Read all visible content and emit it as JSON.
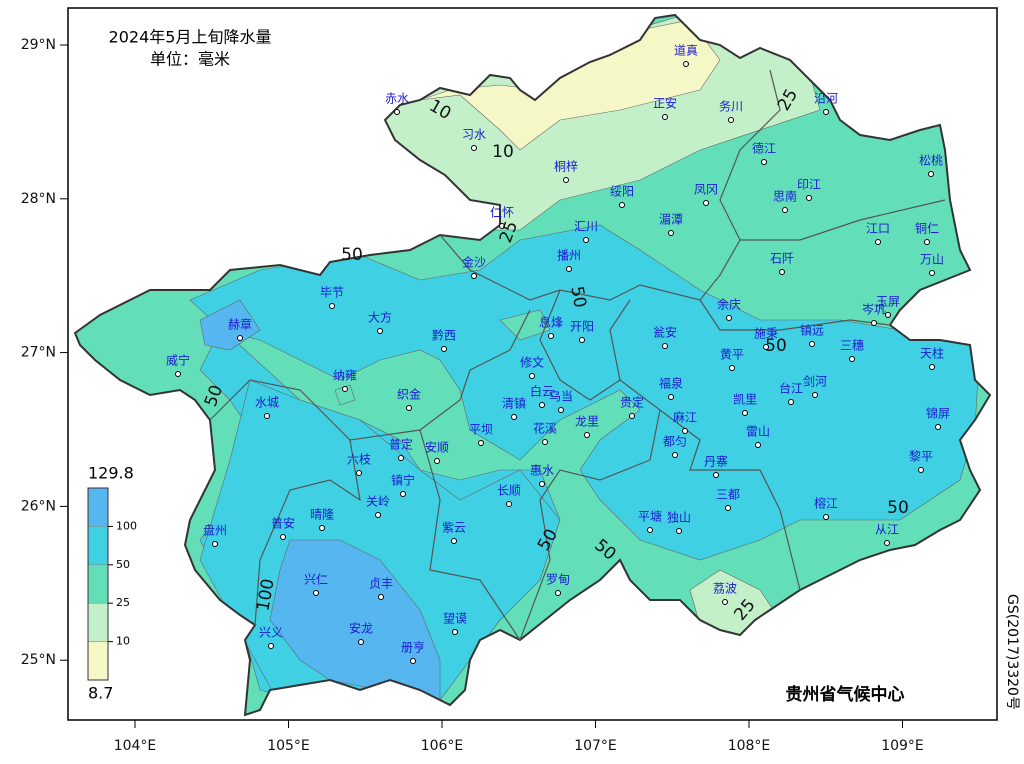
{
  "map": {
    "title": "2024年5月上旬降水量",
    "unit": "单位：毫米",
    "credit": "贵州省气候中心",
    "approval_no": "GS(2017)3320号",
    "lat_ticks": [
      {
        "value": 29,
        "label": "29°N"
      },
      {
        "value": 28,
        "label": "28°N"
      },
      {
        "value": 27,
        "label": "27°N"
      },
      {
        "value": 26,
        "label": "26°N"
      },
      {
        "value": 25,
        "label": "25°N"
      }
    ],
    "lon_ticks": [
      {
        "value": 104,
        "label": "104°E"
      },
      {
        "value": 105,
        "label": "105°E"
      },
      {
        "value": 106,
        "label": "106°E"
      },
      {
        "value": 107,
        "label": "107°E"
      },
      {
        "value": 108,
        "label": "108°E"
      },
      {
        "value": 109,
        "label": "109°E"
      }
    ],
    "legend": {
      "max": 129.8,
      "min": 8.7,
      "ticks": [
        100,
        50,
        25,
        10
      ],
      "colors": [
        "#56b6ef",
        "#3fd0e4",
        "#62dfb8",
        "#c4f0c9",
        "#f6f7c6"
      ]
    },
    "cities": [
      "道真",
      "赤水",
      "务川",
      "沿河",
      "正安",
      "习水",
      "德江",
      "松桃",
      "桐梓",
      "印江",
      "凤冈",
      "绥阳",
      "思南",
      "湄潭",
      "仁怀",
      "江口",
      "铜仁",
      "汇川",
      "播州",
      "石阡",
      "万山",
      "金沙",
      "毕节",
      "岑巩",
      "玉屏",
      "余庆",
      "赫章",
      "大方",
      "息烽",
      "开阳",
      "瓮安",
      "施秉",
      "镇远",
      "三穗",
      "黔西",
      "威宁",
      "黄平",
      "天柱",
      "修文",
      "纳雍",
      "织金",
      "水城",
      "白云",
      "乌当",
      "清镇",
      "福泉",
      "贵定",
      "凯里",
      "台江",
      "剑河",
      "锦屏",
      "麻江",
      "雷山",
      "花溪",
      "龙里",
      "平坝",
      "都匀",
      "六枝",
      "普定",
      "安顺",
      "惠水",
      "丹寨",
      "黎平",
      "镇宁",
      "长顺",
      "关岭",
      "三都",
      "晴隆",
      "普安",
      "盘州",
      "紫云",
      "平塘",
      "独山",
      "榕江",
      "从江",
      "兴仁",
      "贞丰",
      "罗甸",
      "荔波",
      "望谟",
      "兴义",
      "安龙",
      "册亨"
    ],
    "contour_labels": [
      10,
      10,
      25,
      25,
      50,
      50,
      50,
      50,
      50,
      50,
      50,
      25,
      100
    ]
  }
}
